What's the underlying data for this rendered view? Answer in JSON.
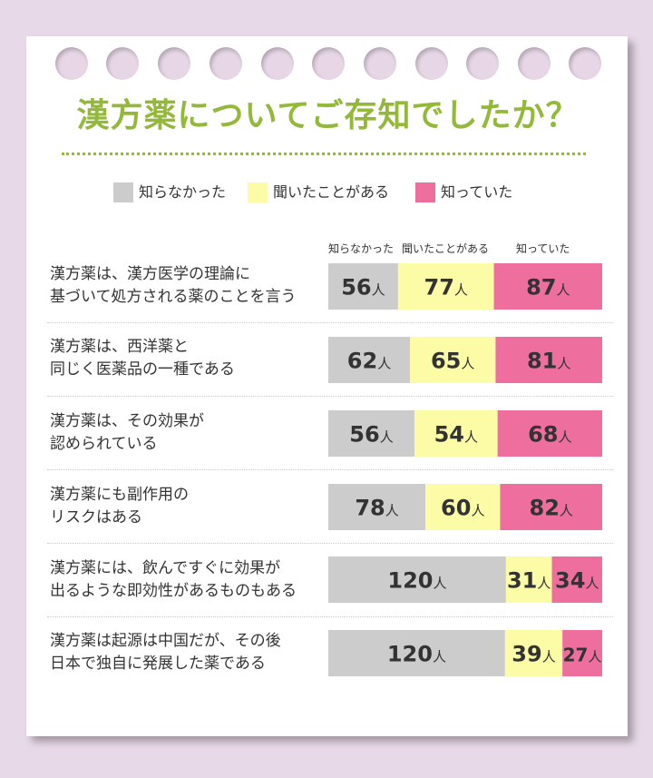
{
  "title": "漢方薬についてご存知でしたか？",
  "colors": {
    "not_known": "#cccccc",
    "heard": "#fdfca6",
    "known": "#ee6f9e",
    "title": "#93b83a"
  },
  "legend": [
    {
      "label": "知らなかった",
      "color": "#cccccc"
    },
    {
      "label": "聞いたことがある",
      "color": "#fdfca6"
    },
    {
      "label": "知っていた",
      "color": "#ee6f9e"
    }
  ],
  "column_headers": [
    "知らなかった",
    "聞いたことがある",
    "知っていた"
  ],
  "chart_data": {
    "type": "bar",
    "stacked": true,
    "orientation": "horizontal",
    "unit": "人",
    "categories": [
      "漢方薬は、漢方医学の理論に\n基づいて処方される薬のことを言う",
      "漢方薬は、西洋薬と\n同じく医薬品の一種である",
      "漢方薬は、その効果が\n認められている",
      "漢方薬にも副作用の\nリスクはある",
      "漢方薬には、飲んですぐに効果が\n出るような即効性があるものもある",
      "漢方薬は起源は中国だが、その後\n日本で独自に発展した薬である"
    ],
    "series": [
      {
        "name": "知らなかった",
        "values": [
          56,
          62,
          56,
          78,
          120,
          120
        ]
      },
      {
        "name": "聞いたことがある",
        "values": [
          77,
          65,
          54,
          60,
          31,
          39
        ]
      },
      {
        "name": "知っていた",
        "values": [
          87,
          81,
          68,
          82,
          34,
          27
        ]
      }
    ]
  }
}
